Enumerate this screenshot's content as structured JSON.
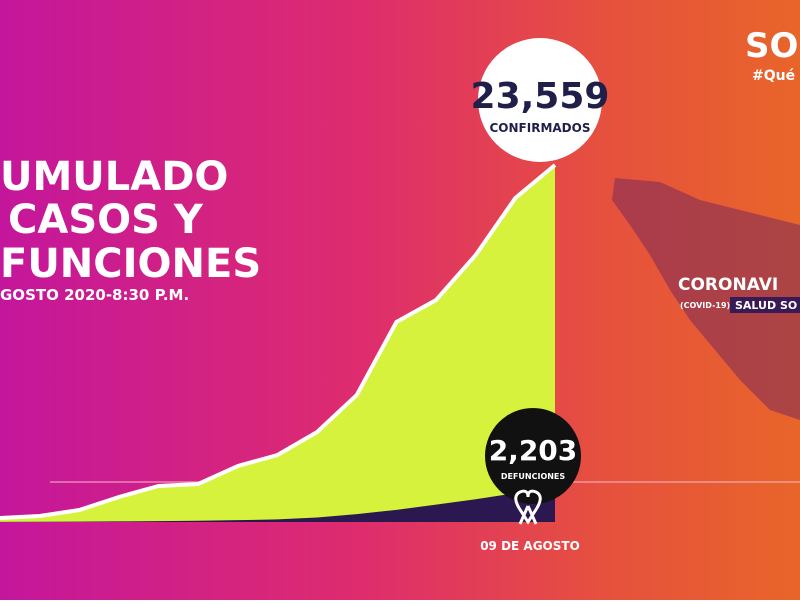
{
  "header": {
    "logo": "SO",
    "hashtag": "#Qué"
  },
  "side_panel": {
    "title": "CORONAVI",
    "tag": "(COVID-19)",
    "source": "SALUD SO"
  },
  "chart_data": {
    "type": "area",
    "title_lines": [
      "UMULADO",
      "CASOS Y",
      "FUNCIONES"
    ],
    "subtitle": "GOSTO 2020-8:30 P.M.",
    "categories": [
      null,
      null,
      null,
      null,
      null,
      null,
      null,
      null,
      null,
      null,
      null,
      null,
      null,
      null,
      "09 DE AGOSTO"
    ],
    "series": [
      {
        "name": "CONFIRMADOS",
        "color": "#d6f23c",
        "values": [
          264,
          396,
          792,
          1650,
          2376,
          2508,
          3695,
          4421,
          5939,
          8381,
          13198,
          14650,
          17620,
          21381,
          23559
        ],
        "value_labels": [
          null,
          null,
          null,
          null,
          null,
          null,
          null,
          null,
          null,
          null,
          null,
          null,
          null,
          null,
          "23,559"
        ]
      },
      {
        "name": "DEFUNCIONES",
        "color": "#2b1850",
        "values": [
          10,
          15,
          25,
          40,
          60,
          80,
          120,
          170,
          300,
          520,
          800,
          1150,
          1500,
          1900,
          2203
        ],
        "value_labels": [
          null,
          null,
          null,
          null,
          null,
          null,
          null,
          null,
          null,
          null,
          null,
          null,
          null,
          null,
          "2,203"
        ]
      }
    ]
  }
}
